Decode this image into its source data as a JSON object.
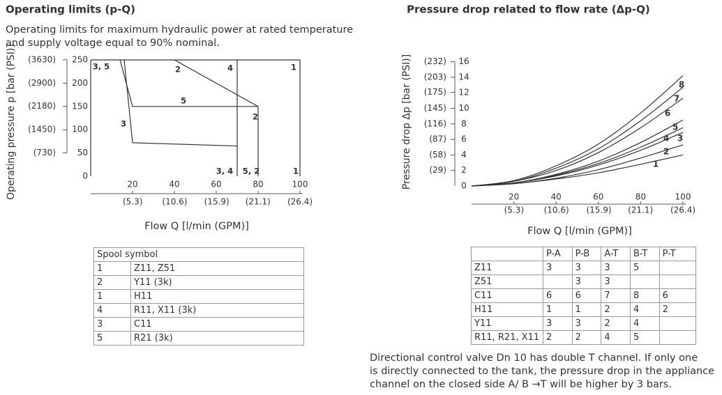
{
  "left": {
    "title": "Operating limits (p-Q)",
    "subtitle": [
      "Operating limits for maximum hydraulic power at rated temperature",
      "and supply voltage equal to 90% nominal."
    ]
  },
  "right": {
    "title": "Pressure drop related to flow rate (Δp-Q)"
  },
  "chart_data": [
    {
      "type": "line",
      "ylabel": "Operating pressure p [bar (PSI)]",
      "xlabel": "Flow Q [l/min (GPM)]",
      "xlim": [
        0,
        100
      ],
      "ylim": [
        0,
        250
      ],
      "xticks": [
        20,
        40,
        60,
        80,
        100
      ],
      "yticks": [
        0,
        50,
        100,
        150,
        200,
        250
      ],
      "x2lim": [
        0,
        26.4
      ],
      "x2ticks": [
        {
          "value": 5.3,
          "label": "(5.3)"
        },
        {
          "value": 10.6,
          "label": "(10.6)"
        },
        {
          "value": 15.9,
          "label": "(15.9)"
        },
        {
          "value": 21.1,
          "label": "(21.1)"
        },
        {
          "value": 26.4,
          "label": "(26.4)"
        }
      ],
      "y2lim": [
        0,
        3626
      ],
      "y2ticks": [
        {
          "value": 730,
          "label": "(730)"
        },
        {
          "value": 1450,
          "label": "(1450)"
        },
        {
          "value": 2180,
          "label": "(2180)"
        },
        {
          "value": 2900,
          "label": "(2900)"
        },
        {
          "value": 3630,
          "label": "(3630)"
        }
      ],
      "series": [
        {
          "color": "#333333",
          "x": [
            0,
            100,
            100
          ],
          "values": [
            250,
            250,
            0
          ]
        },
        {
          "color": "#333333",
          "x": [
            40,
            80,
            80
          ],
          "values": [
            250,
            150,
            0
          ]
        },
        {
          "color": "#333333",
          "x": [
            70,
            70
          ],
          "values": [
            250,
            0
          ]
        },
        {
          "color": "#333333",
          "x": [
            14,
            20,
            80
          ],
          "values": [
            250,
            150,
            150
          ]
        },
        {
          "color": "#333333",
          "x": [
            16,
            20,
            70
          ],
          "values": [
            250,
            72,
            65
          ]
        }
      ],
      "annotations": [
        "3, 5",
        "2",
        "4",
        "1",
        "5",
        "2",
        "3",
        "3, 4",
        "5, 2",
        "1"
      ]
    },
    {
      "type": "line",
      "ylabel": "Pressure drop Δp [bar (PSI)]",
      "xlabel": "Flow Q [l/min (GPM)]",
      "smooth": true,
      "xlim": [
        0,
        100
      ],
      "ylim": [
        0,
        16
      ],
      "xticks": [
        20,
        40,
        60,
        80,
        100
      ],
      "yticks": [
        0,
        2,
        4,
        6,
        8,
        10,
        12,
        14,
        16
      ],
      "x2lim": [
        0,
        26.4
      ],
      "x2ticks": [
        {
          "value": 5.3,
          "label": "(5.3)"
        },
        {
          "value": 10.6,
          "label": "(10.6)"
        },
        {
          "value": 15.9,
          "label": "(15.9)"
        },
        {
          "value": 21.1,
          "label": "(21.1)"
        },
        {
          "value": 26.4,
          "label": "(26.4)"
        }
      ],
      "y2lim": [
        0,
        232
      ],
      "y2ticks": [
        {
          "value": 29,
          "label": "(29)"
        },
        {
          "value": 58,
          "label": "(58)"
        },
        {
          "value": 87,
          "label": "(87)"
        },
        {
          "value": 116,
          "label": "(116)"
        },
        {
          "value": 145,
          "label": "(145)"
        },
        {
          "value": 175,
          "label": "(175)"
        },
        {
          "value": 203,
          "label": "(203)"
        },
        {
          "value": 232,
          "label": "(232)"
        }
      ],
      "series": [
        {
          "name": "1",
          "color": "#333333",
          "x": [
            0,
            20,
            40,
            60,
            80,
            100
          ],
          "values": [
            0,
            0.3,
            0.9,
            1.7,
            2.8,
            4.0
          ]
        },
        {
          "name": "2",
          "color": "#333333",
          "x": [
            0,
            20,
            40,
            60,
            80,
            100
          ],
          "values": [
            0,
            0.3,
            1.0,
            2.1,
            3.6,
            5.3
          ]
        },
        {
          "name": "3",
          "color": "#333333",
          "x": [
            0,
            20,
            40,
            60,
            80,
            100
          ],
          "values": [
            0,
            0.4,
            1.3,
            2.7,
            4.6,
            6.9
          ]
        },
        {
          "name": "4",
          "color": "#333333",
          "x": [
            0,
            20,
            40,
            60,
            80,
            100
          ],
          "values": [
            0,
            0.4,
            1.4,
            2.9,
            5.0,
            7.5
          ]
        },
        {
          "name": "5",
          "color": "#333333",
          "x": [
            0,
            20,
            40,
            60,
            80,
            100
          ],
          "values": [
            0,
            0.4,
            1.5,
            3.2,
            5.6,
            8.5
          ]
        },
        {
          "name": "6",
          "color": "#333333",
          "x": [
            0,
            20,
            40,
            60,
            80,
            100
          ],
          "values": [
            0,
            0.6,
            2.0,
            4.3,
            7.5,
            11.3
          ]
        },
        {
          "name": "7",
          "color": "#333333",
          "x": [
            0,
            20,
            40,
            60,
            80,
            100
          ],
          "values": [
            0,
            0.6,
            2.3,
            4.8,
            8.4,
            12.7
          ]
        },
        {
          "name": "8",
          "color": "#333333",
          "x": [
            0,
            20,
            40,
            60,
            80,
            100
          ],
          "values": [
            0,
            0.7,
            2.6,
            5.4,
            9.4,
            14.2
          ]
        }
      ]
    }
  ],
  "spool_table": {
    "header": "Spool symbol",
    "rows": [
      [
        1,
        "Z11, Z51"
      ],
      [
        2,
        "Y11 (3k)"
      ],
      [
        1,
        "H11"
      ],
      [
        4,
        "R11, X11 (3k)"
      ],
      [
        3,
        "C11"
      ],
      [
        5,
        "R21 (3k)"
      ]
    ]
  },
  "drop_table": {
    "columns": [
      "P-A",
      "P-B",
      "A-T",
      "B-T",
      "P-T"
    ],
    "rows": [
      {
        "spool": "Z11",
        "values": [
          3,
          3,
          3,
          5,
          null
        ]
      },
      {
        "spool": "Z51",
        "values": [
          null,
          3,
          3,
          null,
          null
        ]
      },
      {
        "spool": "C11",
        "values": [
          6,
          6,
          7,
          8,
          6
        ]
      },
      {
        "spool": "H11",
        "values": [
          1,
          1,
          2,
          4,
          2
        ]
      },
      {
        "spool": "Y11",
        "values": [
          3,
          3,
          2,
          4,
          null
        ]
      },
      {
        "spool": "R11, R21, X11",
        "values": [
          2,
          2,
          4,
          5,
          null
        ]
      }
    ]
  },
  "note": [
    "Directional control valve Dn 10 has double T channel. If only one",
    "is directly connected to the tank, the pressure drop in the appliance",
    "channel on the closed side A/ B →T will be higher by 3 bars."
  ]
}
